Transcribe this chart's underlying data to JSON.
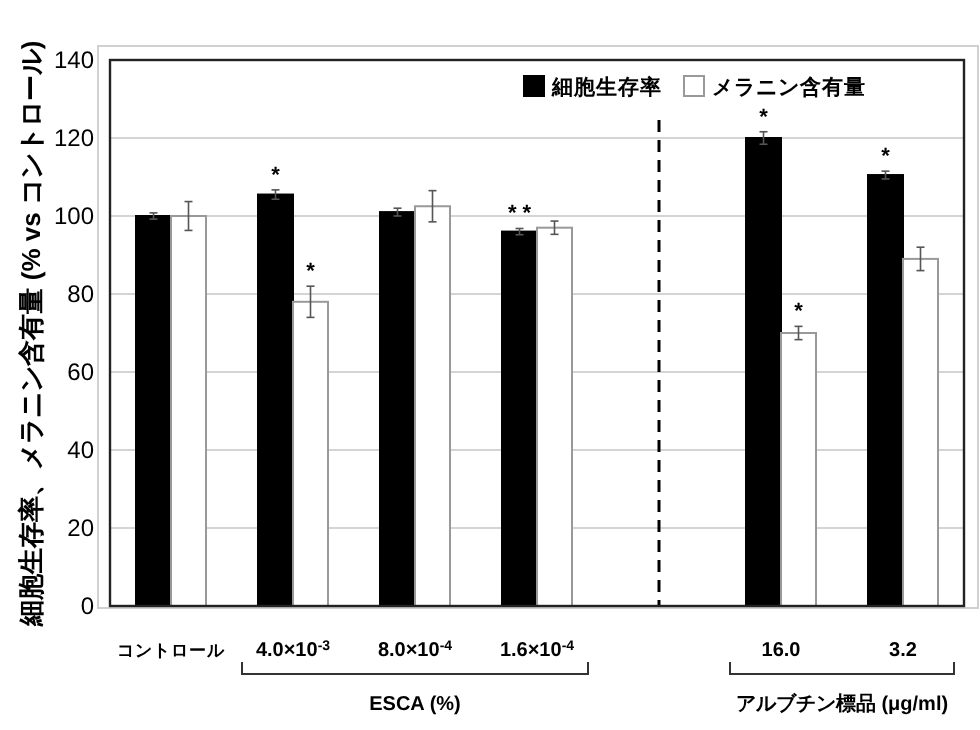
{
  "chart_data": {
    "type": "bar",
    "ylabel": "細胞生存率、メラニン含有量 (% vs コントロール)",
    "categories": [
      "コントロール",
      "4.0×10$^{-3}$",
      "8.0×10$^{-4}$",
      "1.6×10$^{-4}$",
      null,
      "16.0",
      "3.2"
    ],
    "series": [
      {
        "name": "細胞生存率",
        "color": "#000000",
        "values": [
          100,
          105.5,
          101,
          96,
          null,
          120,
          110.5
        ],
        "errors": [
          0.8,
          1.2,
          1,
          0.8,
          null,
          1.6,
          1
        ]
      },
      {
        "name": "メラニン含有量",
        "color": "#ffffff",
        "values": [
          100,
          78,
          102.5,
          97,
          null,
          70,
          89
        ],
        "errors": [
          3.7,
          4,
          4,
          1.7,
          null,
          1.7,
          3
        ]
      }
    ],
    "ylim": [
      0,
      140
    ],
    "yticks": [
      0,
      20,
      40,
      60,
      80,
      100,
      120,
      140
    ],
    "grid": "y",
    "legend": "top right",
    "annotations": [
      {
        "text": "*",
        "x": "4.0×10$^{-3}$",
        "y": 106.7
      },
      {
        "text": "*",
        "x": "4.0×10$^{-3}$",
        "y": 82
      },
      {
        "text": "* *",
        "x": "1.6×10$^{-4}$",
        "y": 96.8
      },
      {
        "text": "*",
        "x": "16.0",
        "y": 121.6
      },
      {
        "text": "*",
        "x": "16.0",
        "y": 71.7
      },
      {
        "text": "*",
        "x": "3.2",
        "y": 111.5
      },
      "ESCA (%)",
      "アルブチン標品 (μg/ml)"
    ]
  }
}
